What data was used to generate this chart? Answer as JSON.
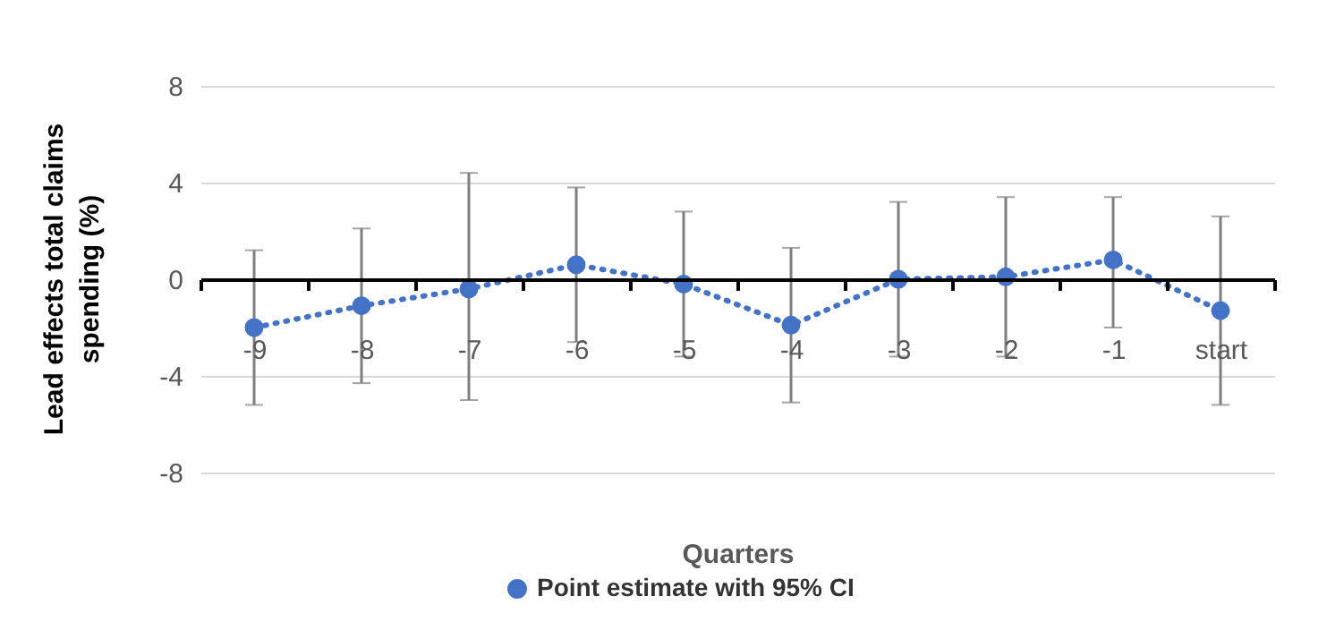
{
  "chart_data": {
    "type": "line",
    "xlabel": "Quarters",
    "ylabel": "Lead effects total claims spending (%)",
    "categories": [
      "-9",
      "-8",
      "-7",
      "-6",
      "-5",
      "-4",
      "-3",
      "-2",
      "-1",
      "start"
    ],
    "series": [
      {
        "name": "Point estimate with 95% CI",
        "color": "#4472c4",
        "values": [
          -2.0,
          -1.1,
          -0.4,
          0.6,
          -0.2,
          -1.9,
          0.0,
          0.1,
          0.8,
          -1.3
        ],
        "errors": [
          [
            -5.2,
            1.2
          ],
          [
            -4.3,
            2.1
          ],
          [
            -5.0,
            4.4
          ],
          [
            -2.6,
            3.8
          ],
          [
            -3.2,
            2.8
          ],
          [
            -5.1,
            1.3
          ],
          [
            -3.2,
            3.2
          ],
          [
            -3.2,
            3.4
          ],
          [
            -2.0,
            3.4
          ],
          [
            -5.2,
            2.6
          ]
        ]
      }
    ],
    "ylim": [
      -8,
      8
    ],
    "yticks": [
      -8,
      -4,
      0,
      4,
      8
    ],
    "grid": "y",
    "legend": "bottom",
    "marker": "circle",
    "line_style": "dotted"
  }
}
